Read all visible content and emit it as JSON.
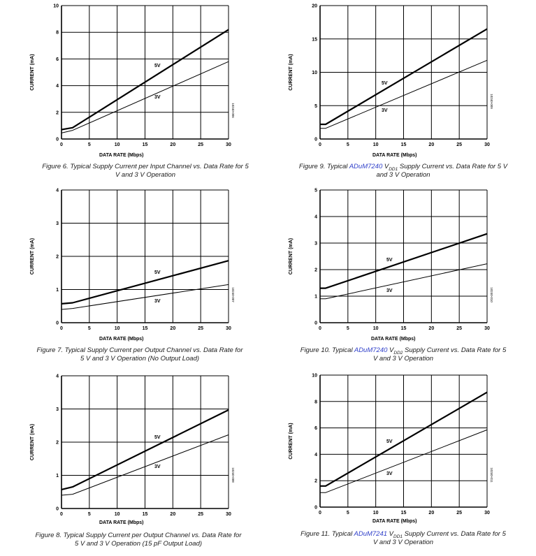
{
  "chart_data": [
    {
      "type": "line",
      "caption": "Figure 6. Typical Supply Current per Input Channel vs. Data Rate for 5 V and 3 V Operation",
      "xlabel": "DATA RATE (Mbps)",
      "ylabel": "CURRENT (mA)",
      "xlim": [
        0,
        30
      ],
      "ylim": [
        0,
        10
      ],
      "xticks": [
        0,
        5,
        10,
        15,
        20,
        25,
        30
      ],
      "yticks": [
        0,
        2,
        4,
        6,
        8,
        10
      ],
      "grid": true,
      "figure_id": "10240-006",
      "series": [
        {
          "name": "5V",
          "x": [
            0,
            2,
            30
          ],
          "y": [
            0.7,
            0.85,
            8.2
          ],
          "stroke": "heavy"
        },
        {
          "name": "3V",
          "x": [
            0,
            2,
            30
          ],
          "y": [
            0.45,
            0.65,
            5.8
          ],
          "stroke": "light"
        }
      ]
    },
    {
      "type": "line",
      "caption": "Figure 9. Typical ADuM7240 VDD1 Supply Current vs. Data Rate for 5 V and 3 V Operation",
      "caption_pre": "Figure 9. Typical ",
      "caption_product": "ADuM7240",
      "caption_v": " V",
      "caption_sub": "DD1",
      "caption_post": " Supply Current vs. Data Rate for 5 V and 3 V Operation",
      "xlabel": "DATA RATE (Mbps)",
      "ylabel": "CURRENT (mA)",
      "xlim": [
        0,
        30
      ],
      "ylim": [
        0,
        20
      ],
      "xticks": [
        0,
        5,
        10,
        15,
        20,
        25,
        30
      ],
      "yticks": [
        0,
        5,
        10,
        15,
        20
      ],
      "grid": true,
      "figure_id": "10240-009",
      "series": [
        {
          "name": "5V",
          "x": [
            0,
            1,
            30
          ],
          "y": [
            2.2,
            2.2,
            16.5
          ],
          "stroke": "heavy"
        },
        {
          "name": "3V",
          "x": [
            0,
            1,
            30
          ],
          "y": [
            1.6,
            1.6,
            11.8
          ],
          "stroke": "light"
        }
      ]
    },
    {
      "type": "line",
      "caption": "Figure 7. Typical Supply Current per Output Channel vs. Data Rate for 5 V and 3 V Operation (No Output Load)",
      "xlabel": "DATA RATE (Mbps)",
      "ylabel": "CURRENT (mA)",
      "xlim": [
        0,
        30
      ],
      "ylim": [
        0,
        4
      ],
      "xticks": [
        0,
        5,
        10,
        15,
        20,
        25,
        30
      ],
      "yticks": [
        0,
        1,
        2,
        3,
        4
      ],
      "grid": true,
      "figure_id": "10240-007",
      "series": [
        {
          "name": "5V",
          "x": [
            0,
            2,
            30
          ],
          "y": [
            0.57,
            0.6,
            1.87
          ],
          "stroke": "heavy"
        },
        {
          "name": "3V",
          "x": [
            0,
            2,
            30
          ],
          "y": [
            0.4,
            0.43,
            1.15
          ],
          "stroke": "light"
        }
      ]
    },
    {
      "type": "line",
      "caption": "Figure 10. Typical ADuM7240 VDD2 Supply Current vs. Data Rate for 5 V and 3 V Operation",
      "caption_pre": "Figure 10. Typical ",
      "caption_product": "ADuM7240",
      "caption_v": " V",
      "caption_sub": "DD2",
      "caption_post": " Supply Current vs. Data Rate for 5 V and 3 V Operation",
      "xlabel": "DATA RATE (Mbps)",
      "ylabel": "CURRENT (mA)",
      "xlim": [
        0,
        30
      ],
      "ylim": [
        0,
        5
      ],
      "xticks": [
        0,
        5,
        10,
        15,
        20,
        25,
        30
      ],
      "yticks": [
        0,
        1,
        2,
        3,
        4,
        5
      ],
      "grid": true,
      "figure_id": "10240-010",
      "series": [
        {
          "name": "5V",
          "x": [
            0,
            1,
            30
          ],
          "y": [
            1.3,
            1.3,
            3.35
          ],
          "stroke": "heavy"
        },
        {
          "name": "3V",
          "x": [
            0,
            1,
            30
          ],
          "y": [
            0.9,
            0.9,
            2.22
          ],
          "stroke": "light"
        }
      ]
    },
    {
      "type": "line",
      "caption": "Figure 8. Typical Supply Current per Output Channel vs. Data Rate for 5 V and 3 V Operation (15 pF Output Load)",
      "xlabel": "DATA RATE (Mbps)",
      "ylabel": "CURRENT (mA)",
      "xlim": [
        0,
        30
      ],
      "ylim": [
        0,
        4
      ],
      "xticks": [
        0,
        5,
        10,
        15,
        20,
        25,
        30
      ],
      "yticks": [
        0,
        1,
        2,
        3,
        4
      ],
      "grid": true,
      "figure_id": "10240-008",
      "series": [
        {
          "name": "5V",
          "x": [
            0,
            2,
            30
          ],
          "y": [
            0.57,
            0.65,
            2.97
          ],
          "stroke": "heavy"
        },
        {
          "name": "3V",
          "x": [
            0,
            2,
            30
          ],
          "y": [
            0.4,
            0.43,
            2.22
          ],
          "stroke": "light"
        }
      ]
    },
    {
      "type": "line",
      "caption": "Figure 11. Typical ADuM7241 VDD1 Supply Current vs. Data Rate for 5 V and 3 V Operation",
      "caption_pre": "Figure 11. Typical ",
      "caption_product": "ADuM7241",
      "caption_v": " V",
      "caption_sub": "DD1",
      "caption_post": " Supply Current vs. Data Rate for 5 V and 3 V Operation",
      "xlabel": "DATA RATE (Mbps)",
      "ylabel": "CURRENT (mA)",
      "xlim": [
        0,
        30
      ],
      "ylim": [
        0,
        10
      ],
      "xticks": [
        0,
        5,
        10,
        15,
        20,
        25,
        30
      ],
      "yticks": [
        0,
        2,
        4,
        6,
        8,
        10
      ],
      "grid": true,
      "figure_id": "10240-011",
      "series": [
        {
          "name": "5V",
          "x": [
            0,
            1,
            30
          ],
          "y": [
            1.6,
            1.6,
            8.7
          ],
          "stroke": "heavy"
        },
        {
          "name": "3V",
          "x": [
            0,
            1,
            30
          ],
          "y": [
            1.1,
            1.1,
            5.85
          ],
          "stroke": "light"
        }
      ]
    }
  ],
  "colors": {
    "grid": "#000000",
    "line": "#000000",
    "caption_text": "#1a1a1a",
    "product_link": "#2f3fc9"
  }
}
